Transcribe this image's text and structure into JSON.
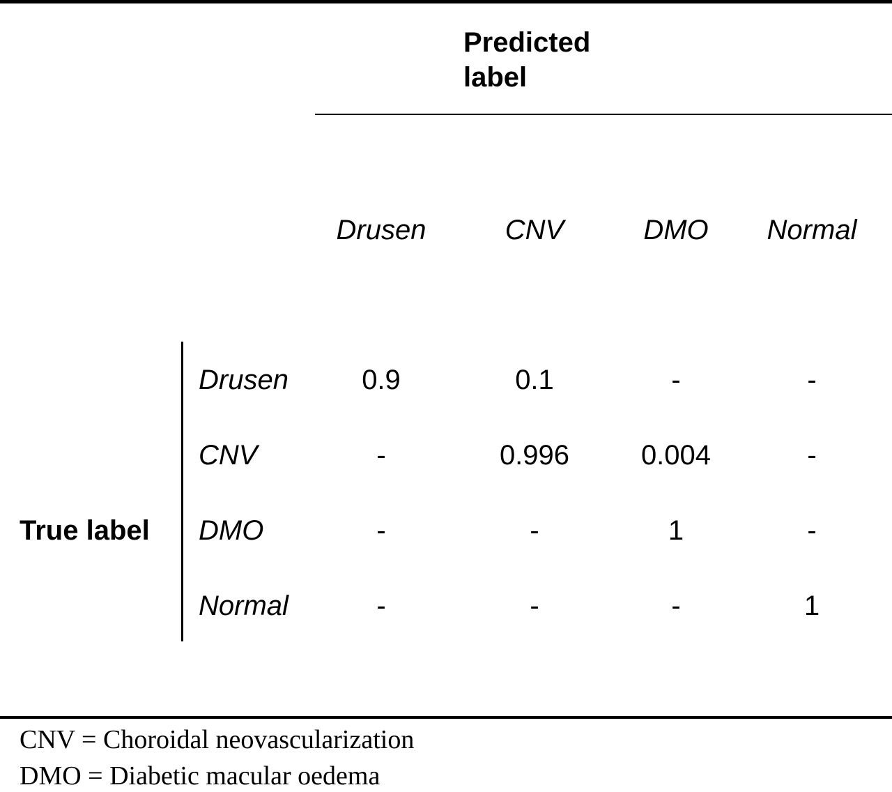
{
  "table": {
    "predicted_title_line1": "Predicted",
    "predicted_title_line2": "label",
    "true_title": "True label",
    "columns": [
      "Drusen",
      "CNV",
      "DMO",
      "Normal"
    ],
    "rows": [
      {
        "label": "Drusen",
        "values": [
          "0.9",
          "0.1",
          "-",
          "-"
        ]
      },
      {
        "label": "CNV",
        "values": [
          "-",
          "0.996",
          "0.004",
          "-"
        ]
      },
      {
        "label": "DMO",
        "values": [
          "-",
          "-",
          "1",
          "-"
        ]
      },
      {
        "label": "Normal",
        "values": [
          "-",
          "-",
          "-",
          "1"
        ]
      }
    ]
  },
  "footnotes": [
    "CNV = Choroidal neovascularization",
    "DMO = Diabetic macular oedema"
  ]
}
